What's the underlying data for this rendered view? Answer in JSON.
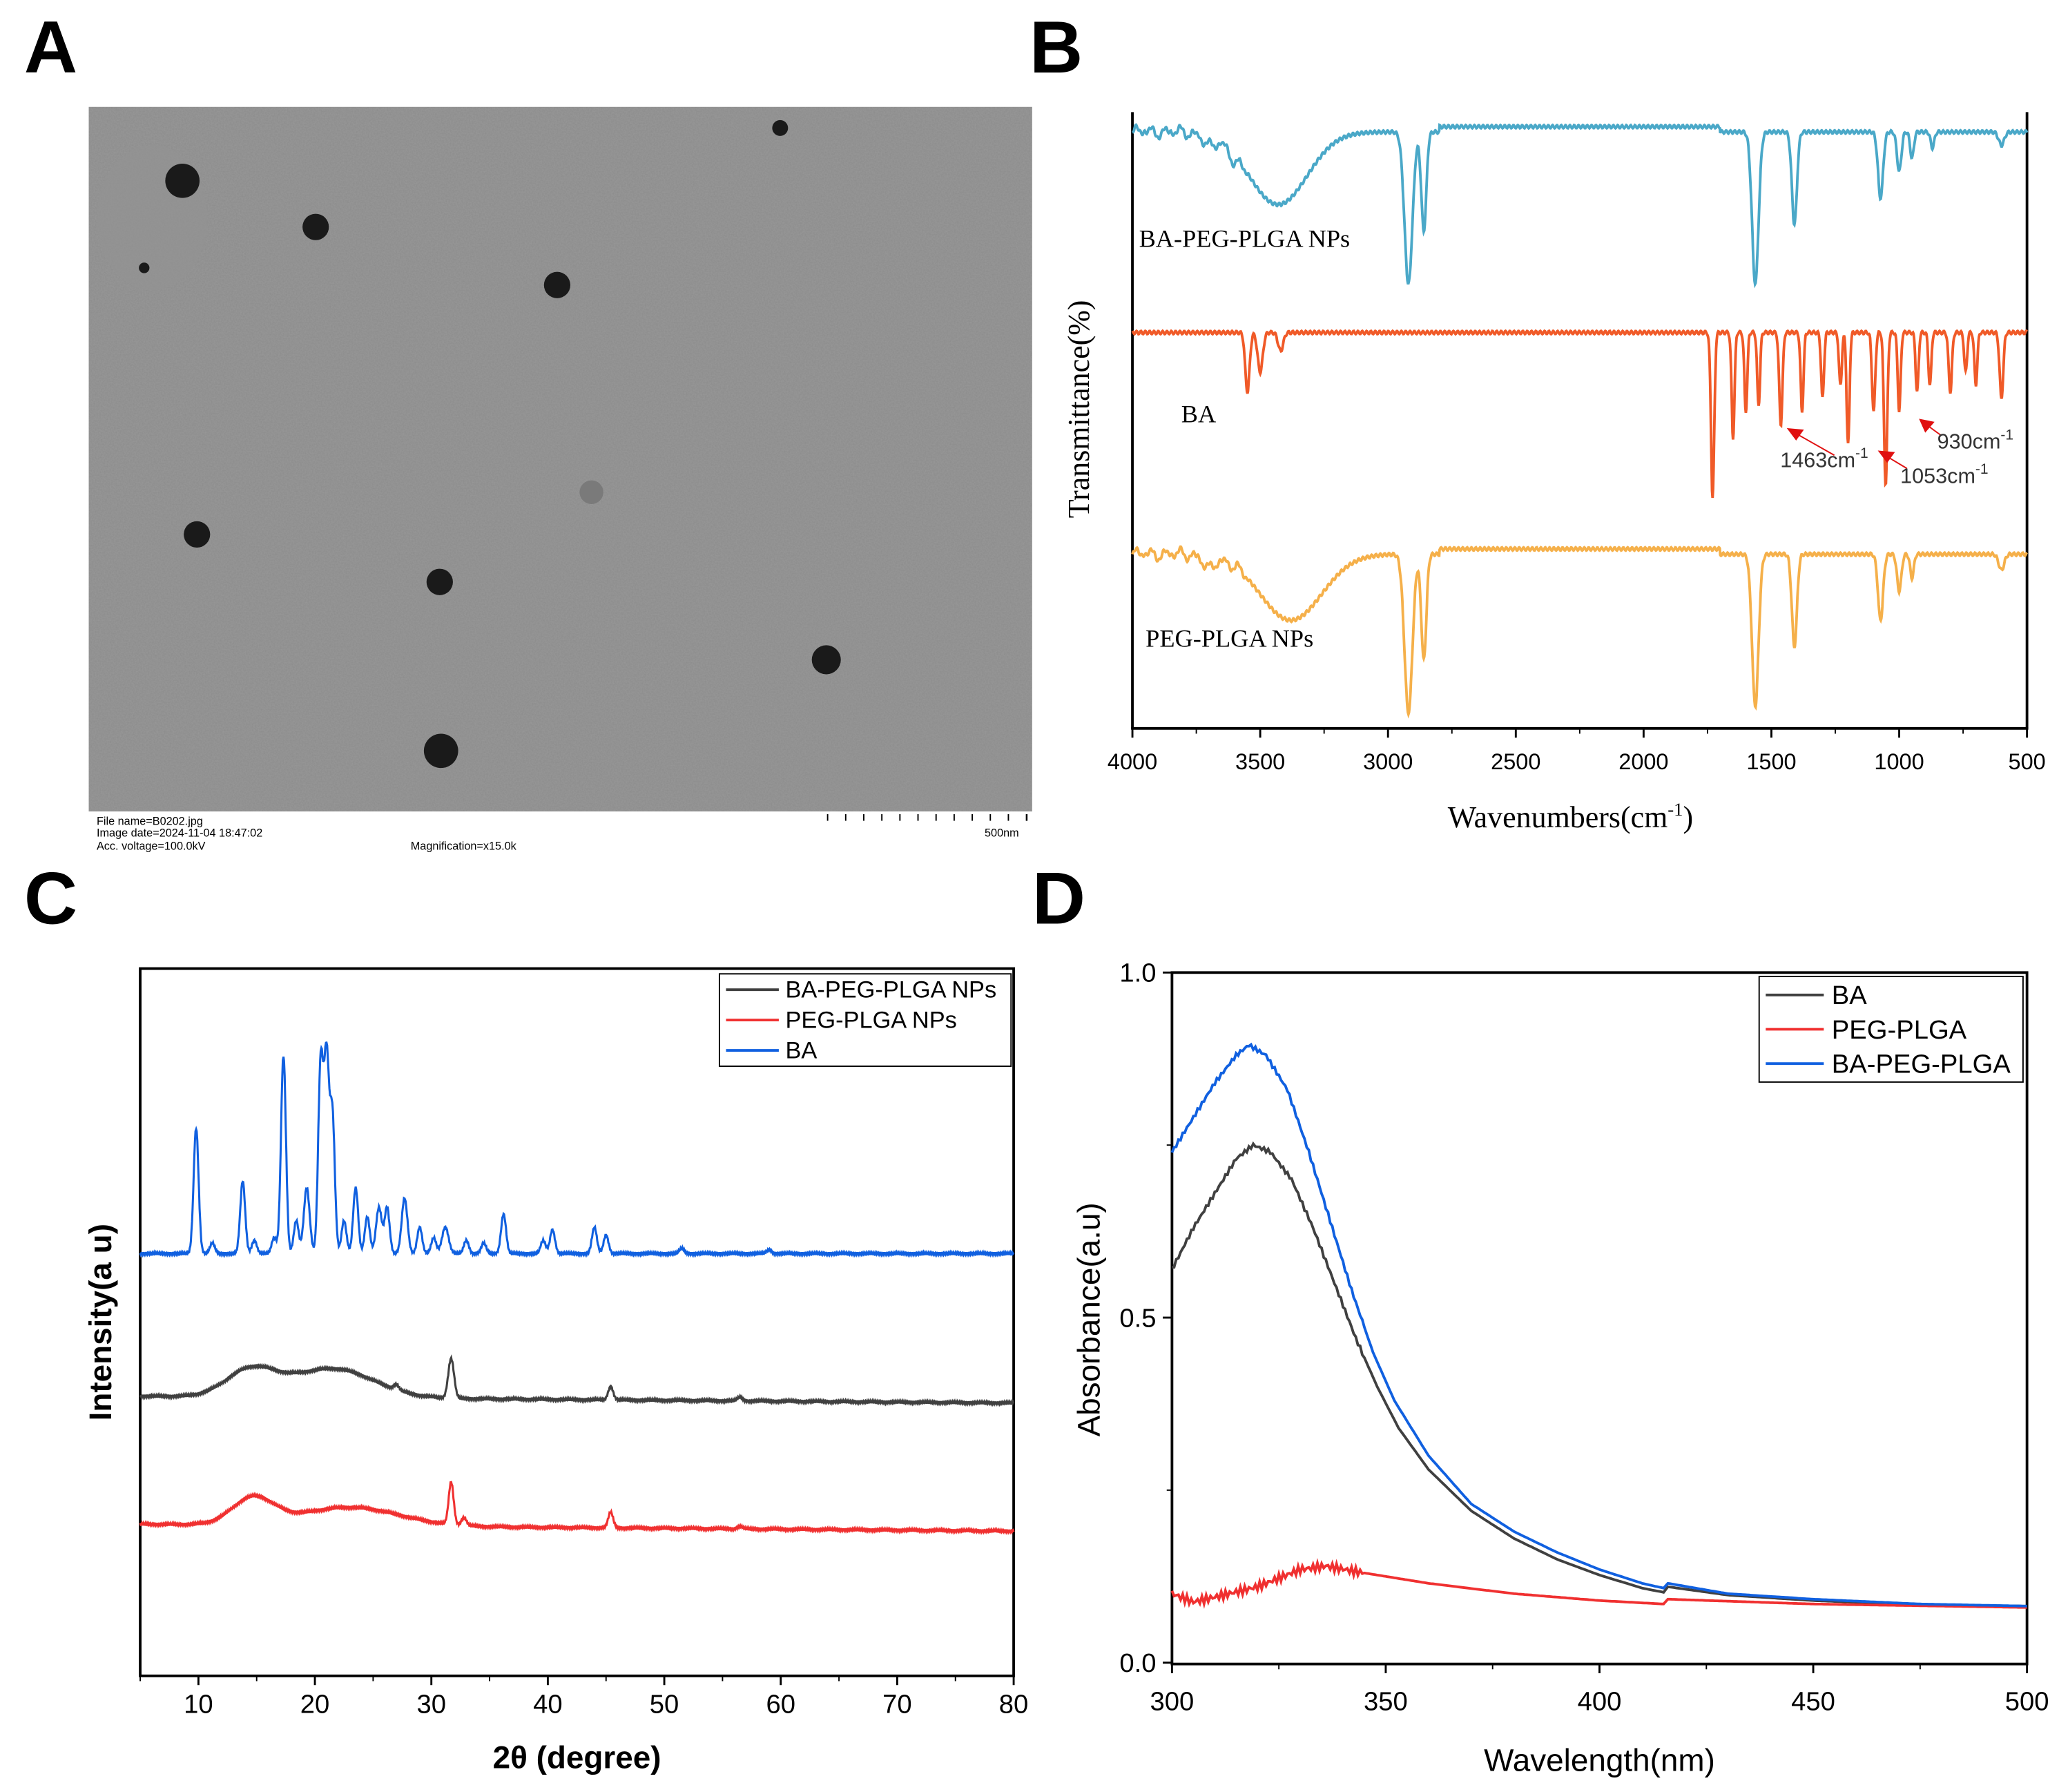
{
  "panel_labels": [
    "A",
    "B",
    "C",
    "D"
  ],
  "tem": {
    "file_name": "File name=B0202.jpg",
    "image_date": "Image date=2024-11-04 18:47:02",
    "voltage": "Acc. voltage=100.0kV",
    "magnification": "Magnification=x15.0k",
    "scale": "500nm"
  },
  "chart_data": [
    {
      "panel": "B",
      "type": "line",
      "xlabel": "Wavenumbers(cm",
      "xlabel_sup": "-1",
      "xlabel_end": ")",
      "ylabel": "Transmittance(%)",
      "xlim": [
        4000,
        500
      ],
      "xticks": [
        "4000",
        "3500",
        "3000",
        "2500",
        "2000",
        "1500",
        "1000",
        "500"
      ],
      "xtick_values": [
        4000,
        3500,
        3000,
        2500,
        2000,
        1500,
        1000,
        500
      ],
      "series": [
        {
          "name": "BA-PEG-PLGA NPs",
          "color": "#4aa8c8",
          "peaks": [
            [
              3430,
              55,
              160
            ],
            [
              2920,
              115,
              22
            ],
            [
              2860,
              75,
              14
            ],
            [
              3700,
              8,
              30
            ],
            [
              3600,
              6,
              20
            ],
            [
              1563,
              115,
              18
            ],
            [
              1410,
              70,
              14
            ],
            [
              1073,
              50,
              14
            ],
            [
              1000,
              30,
              12
            ],
            [
              950,
              20,
              10
            ],
            [
              870,
              12,
              10
            ],
            [
              600,
              10,
              15
            ]
          ]
        },
        {
          "name": "BA",
          "color": "#f05a28",
          "peaks": [
            [
              3550,
              45,
              12
            ],
            [
              3500,
              30,
              14
            ],
            [
              3420,
              14,
              14
            ],
            [
              1730,
              125,
              9
            ],
            [
              1650,
              80,
              8
            ],
            [
              1600,
              60,
              8
            ],
            [
              1550,
              55,
              8
            ],
            [
              1463,
              70,
              9
            ],
            [
              1380,
              60,
              8
            ],
            [
              1300,
              50,
              8
            ],
            [
              1230,
              40,
              8
            ],
            [
              1200,
              85,
              8
            ],
            [
              1100,
              60,
              9
            ],
            [
              1053,
              115,
              9
            ],
            [
              1000,
              60,
              8
            ],
            [
              930,
              45,
              8
            ],
            [
              880,
              40,
              8
            ],
            [
              800,
              45,
              9
            ],
            [
              740,
              30,
              8
            ],
            [
              700,
              40,
              8
            ],
            [
              600,
              50,
              10
            ]
          ],
          "annotations": [
            "1463cm",
            "1053cm",
            "930cm"
          ],
          "annotation_sup": "-1"
        },
        {
          "name": "PEG-PLGA NPs",
          "color": "#f5b04a",
          "peaks": [
            [
              3380,
              50,
              170
            ],
            [
              3700,
              10,
              30
            ],
            [
              2920,
              120,
              22
            ],
            [
              2860,
              80,
              14
            ],
            [
              1563,
              115,
              18
            ],
            [
              1410,
              70,
              14
            ],
            [
              1073,
              50,
              14
            ],
            [
              1000,
              28,
              12
            ],
            [
              950,
              18,
              10
            ],
            [
              600,
              12,
              15
            ]
          ]
        }
      ]
    },
    {
      "panel": "C",
      "type": "line",
      "xlabel": "2θ (degree)",
      "ylabel": "Intensity(a u)",
      "xlim": [
        5,
        80
      ],
      "xticks": [
        "10",
        "20",
        "30",
        "40",
        "50",
        "60",
        "70",
        "80"
      ],
      "xtick_values": [
        10,
        20,
        30,
        40,
        50,
        60,
        70,
        80
      ],
      "legend": "top-right",
      "series": [
        {
          "name": "BA-PEG-PLGA NPs",
          "color": "#404040",
          "peaks": [
            [
              14.5,
              20,
              3
            ],
            [
              21.5,
              22,
              5
            ],
            [
              27,
              4,
              0.3
            ],
            [
              31.7,
              30,
              0.35
            ],
            [
              45.4,
              10,
              0.3
            ],
            [
              56.5,
              3,
              0.3
            ]
          ]
        },
        {
          "name": "PEG-PLGA NPs",
          "color": "#f03030",
          "peaks": [
            [
              14.7,
              20,
              2.5
            ],
            [
              23,
              14,
              6
            ],
            [
              31.7,
              32,
              0.3
            ],
            [
              32.8,
              6,
              0.3
            ],
            [
              45.4,
              12,
              0.3
            ],
            [
              56.5,
              2,
              0.3
            ]
          ]
        },
        {
          "name": "BA",
          "color": "#1060e0",
          "peaks": [
            [
              9.8,
              95,
              0.3
            ],
            [
              11.2,
              8,
              0.3
            ],
            [
              13.8,
              55,
              0.3
            ],
            [
              14.8,
              10,
              0.3
            ],
            [
              16.5,
              12,
              0.3
            ],
            [
              17.3,
              150,
              0.3
            ],
            [
              18.4,
              25,
              0.3
            ],
            [
              19.3,
              50,
              0.35
            ],
            [
              20.5,
              145,
              0.3
            ],
            [
              21.0,
              145,
              0.3
            ],
            [
              21.5,
              105,
              0.3
            ],
            [
              22.5,
              25,
              0.3
            ],
            [
              23.5,
              50,
              0.3
            ],
            [
              24.5,
              28,
              0.3
            ],
            [
              25.5,
              35,
              0.35
            ],
            [
              26.2,
              35,
              0.3
            ],
            [
              27.7,
              42,
              0.35
            ],
            [
              29,
              20,
              0.3
            ],
            [
              30.2,
              12,
              0.3
            ],
            [
              31.2,
              20,
              0.4
            ],
            [
              33,
              10,
              0.3
            ],
            [
              34.5,
              8,
              0.3
            ],
            [
              36.2,
              30,
              0.3
            ],
            [
              40.4,
              18,
              0.3
            ],
            [
              39.6,
              10,
              0.3
            ],
            [
              44,
              20,
              0.3
            ],
            [
              45,
              14,
              0.3
            ],
            [
              51.5,
              4,
              0.3
            ],
            [
              59,
              3,
              0.3
            ]
          ]
        }
      ]
    },
    {
      "panel": "D",
      "type": "line",
      "xlabel": "Wavelength(nm)",
      "ylabel": "Absorbance(a.u)",
      "xlim": [
        300,
        500
      ],
      "ylim": [
        0,
        1.0
      ],
      "xticks": [
        "300",
        "350",
        "400",
        "450",
        "500"
      ],
      "xtick_values": [
        300,
        350,
        400,
        450,
        500
      ],
      "yticks": [
        "0.0",
        "0.5",
        "1.0"
      ],
      "ytick_values": [
        0,
        0.5,
        1.0
      ],
      "legend": "top-right",
      "series": [
        {
          "name": "BA",
          "color": "#404040",
          "points": [
            [
              300,
              0.57
            ],
            [
              305,
              0.63
            ],
            [
              310,
              0.68
            ],
            [
              315,
              0.73
            ],
            [
              319,
              0.75
            ],
            [
              323,
              0.74
            ],
            [
              328,
              0.7
            ],
            [
              333,
              0.63
            ],
            [
              338,
              0.55
            ],
            [
              343,
              0.47
            ],
            [
              348,
              0.4
            ],
            [
              353,
              0.34
            ],
            [
              360,
              0.28
            ],
            [
              370,
              0.22
            ],
            [
              380,
              0.18
            ],
            [
              390,
              0.15
            ],
            [
              400,
              0.127
            ],
            [
              410,
              0.108
            ],
            [
              415,
              0.102
            ],
            [
              416,
              0.11
            ],
            [
              430,
              0.098
            ],
            [
              450,
              0.09
            ],
            [
              475,
              0.084
            ],
            [
              500,
              0.082
            ]
          ]
        },
        {
          "name": "PEG-PLGA",
          "color": "#f03030",
          "points": [
            [
              300,
              0.1
            ],
            [
              305,
              0.088
            ],
            [
              310,
              0.095
            ],
            [
              320,
              0.11
            ],
            [
              330,
              0.135
            ],
            [
              336,
              0.14
            ],
            [
              345,
              0.13
            ],
            [
              360,
              0.115
            ],
            [
              380,
              0.1
            ],
            [
              400,
              0.09
            ],
            [
              415,
              0.085
            ],
            [
              416,
              0.092
            ],
            [
              450,
              0.085
            ],
            [
              500,
              0.08
            ]
          ]
        },
        {
          "name": "BA-PEG-PLGA",
          "color": "#1060e0",
          "points": [
            [
              300,
              0.74
            ],
            [
              305,
              0.79
            ],
            [
              310,
              0.84
            ],
            [
              315,
              0.88
            ],
            [
              318,
              0.895
            ],
            [
              322,
              0.88
            ],
            [
              327,
              0.83
            ],
            [
              332,
              0.74
            ],
            [
              337,
              0.64
            ],
            [
              342,
              0.54
            ],
            [
              347,
              0.45
            ],
            [
              352,
              0.38
            ],
            [
              360,
              0.3
            ],
            [
              370,
              0.23
            ],
            [
              380,
              0.19
            ],
            [
              390,
              0.16
            ],
            [
              400,
              0.135
            ],
            [
              410,
              0.115
            ],
            [
              415,
              0.108
            ],
            [
              416,
              0.115
            ],
            [
              430,
              0.1
            ],
            [
              450,
              0.092
            ],
            [
              475,
              0.085
            ],
            [
              500,
              0.082
            ]
          ]
        }
      ]
    }
  ]
}
